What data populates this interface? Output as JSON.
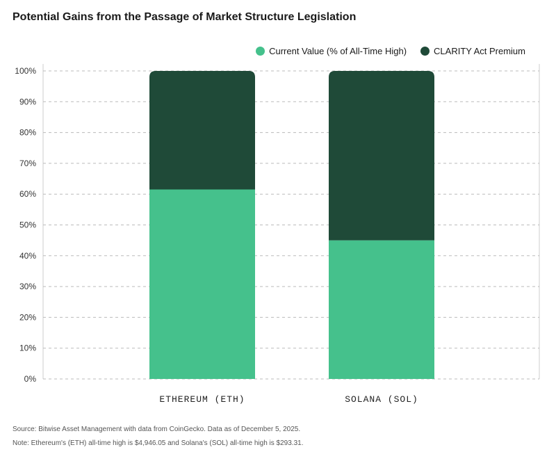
{
  "chart_data": {
    "type": "bar",
    "stacked": true,
    "title": "Potential Gains from the Passage of Market Structure Legislation",
    "categories": [
      "ETHEREUM (ETH)",
      "SOLANA (SOL)"
    ],
    "series": [
      {
        "name": "Current Value (% of All-Time High)",
        "values": [
          61.5,
          45
        ],
        "color": "#45c18c"
      },
      {
        "name": "CLARITY Act Premium",
        "values": [
          38.5,
          55
        ],
        "color": "#1f4a38"
      }
    ],
    "ylim": [
      0,
      100
    ],
    "yticks": [
      "0%",
      "10%",
      "20%",
      "30%",
      "40%",
      "50%",
      "60%",
      "70%",
      "80%",
      "90%",
      "100%"
    ],
    "grid": true,
    "legend": "top-right"
  },
  "footnotes": {
    "source": "Source: Bitwise Asset Management with data from CoinGecko. Data as of December 5, 2025.",
    "note": "Note: Ethereum's (ETH) all-time high is $4,946.05 and Solana's (SOL) all-time high is $293.31."
  }
}
